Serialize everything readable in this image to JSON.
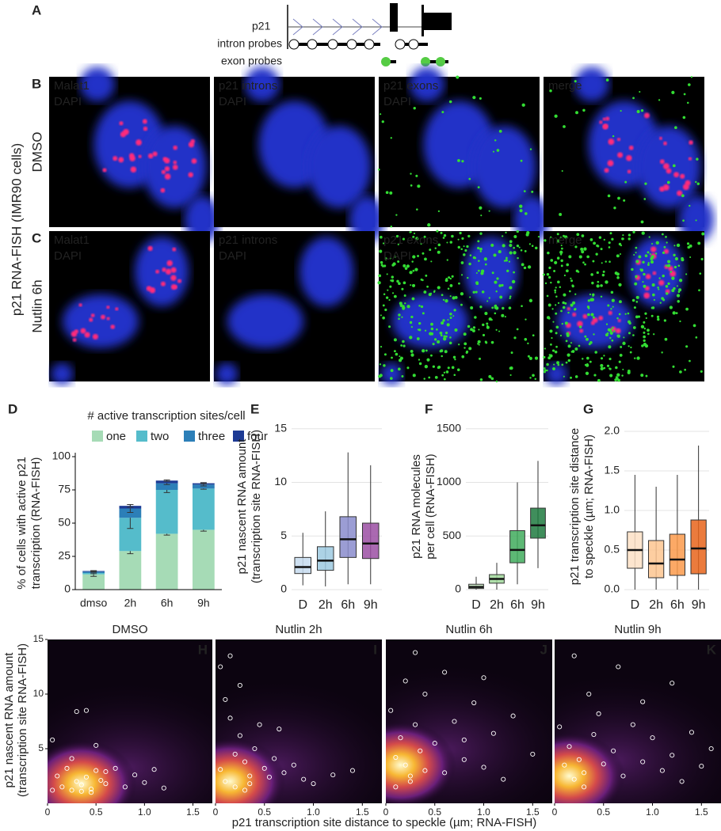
{
  "panel_a": {
    "label": "A",
    "gene": "p21",
    "intron_probes": "intron probes",
    "exon_probes": "exon probes"
  },
  "microscopy": {
    "y_title": "p21 RNA-FISH (IMR90 cells)",
    "rows": [
      {
        "label": "B",
        "condition": "DMSO",
        "panels": [
          {
            "lines": [
              {
                "text": "Malat1",
                "color": "#ff3333"
              },
              {
                "text": "DAPI",
                "color": "#3b6bff"
              }
            ]
          },
          {
            "lines": [
              {
                "text": "p21 introns",
                "color": "#ffffff"
              },
              {
                "text": "DAPI",
                "color": "#3b6bff"
              }
            ]
          },
          {
            "lines": [
              {
                "text": "p21 exons",
                "color": "#33dd33"
              },
              {
                "text": "DAPI",
                "color": "#3b6bff"
              }
            ]
          },
          {
            "lines": [
              {
                "text": "merge",
                "color": "#ffffff"
              }
            ]
          }
        ]
      },
      {
        "label": "C",
        "condition": "Nutlin 6h",
        "panels": [
          {
            "lines": [
              {
                "text": "Malat1",
                "color": "#ff3333"
              },
              {
                "text": "DAPI",
                "color": "#3b6bff"
              }
            ]
          },
          {
            "lines": [
              {
                "text": "p21 introns",
                "color": "#ffffff"
              },
              {
                "text": "DAPI",
                "color": "#3b6bff"
              }
            ]
          },
          {
            "lines": [
              {
                "text": "p21 exons",
                "color": "#33dd33"
              },
              {
                "text": "DAPI",
                "color": "#3b6bff"
              }
            ]
          },
          {
            "lines": [
              {
                "text": "merge",
                "color": "#ffffff"
              }
            ]
          }
        ]
      }
    ]
  },
  "shared_axes": {
    "x_label": "p21 transcription site distance to speckle (µm; RNA-FISH)",
    "y_label": [
      "p21 nascent RNA amount",
      "(transcription site RNA-FISH)"
    ]
  },
  "chart_data": [
    {
      "label": "D",
      "type": "bar",
      "stacked": true,
      "y_label": [
        "% of cells with active p21",
        "transcription (RNA-FISH)"
      ],
      "legend_title": "# active transcription sites/cell",
      "categories": [
        "dmso",
        "2h",
        "6h",
        "9h"
      ],
      "series": [
        {
          "name": "one",
          "color": "#a6dbb6",
          "values": [
            11.5,
            29,
            42,
            45
          ],
          "errors": [
            1.5,
            2,
            1,
            1
          ]
        },
        {
          "name": "two",
          "color": "#55bccb",
          "values": [
            1,
            25,
            33,
            31
          ],
          "errors": [
            0.5,
            8,
            2,
            0.5
          ]
        },
        {
          "name": "three",
          "color": "#2c7fb8",
          "values": [
            1,
            7,
            5,
            3
          ],
          "errors": [
            0.5,
            3,
            1,
            1
          ]
        },
        {
          "name": "four",
          "color": "#1d3a94",
          "values": [
            0.5,
            2,
            2,
            1
          ],
          "errors": [
            0.3,
            1,
            0.5,
            0.5
          ]
        }
      ],
      "ylim": [
        0,
        100
      ],
      "yticks": [
        0,
        25,
        50,
        75,
        100
      ]
    },
    {
      "label": "E",
      "type": "box",
      "y_label": [
        "p21 nascent RNA amount",
        "(transcription site RNA-FISH)"
      ],
      "categories": [
        "D",
        "2h",
        "6h",
        "9h"
      ],
      "colors": [
        "#c6dbef",
        "#9ecae1",
        "#8a8ccc",
        "#9b4fa3"
      ],
      "whisker_low": [
        0.4,
        0.3,
        0.5,
        0.5
      ],
      "q1": [
        1.5,
        1.8,
        3,
        2.9
      ],
      "median": [
        2.1,
        2.7,
        4.7,
        4.3
      ],
      "q3": [
        3,
        4,
        6.8,
        6.2
      ],
      "whisker_high": [
        5.3,
        7.3,
        12.8,
        11.6
      ],
      "ylim": [
        0,
        15.5
      ],
      "yticks": [
        0,
        5,
        10,
        15
      ],
      "grid": true
    },
    {
      "label": "F",
      "type": "box",
      "y_label": [
        "p21 RNA molecules",
        "per cell (RNA-FISH)"
      ],
      "categories": [
        "D",
        "2h",
        "6h",
        "9h"
      ],
      "colors": [
        "#c7e9c0",
        "#a1d99b",
        "#41ab5d",
        "#1f7a3f"
      ],
      "whisker_low": [
        0,
        0,
        50,
        200
      ],
      "q1": [
        10,
        60,
        250,
        480
      ],
      "median": [
        25,
        100,
        370,
        600
      ],
      "q3": [
        50,
        140,
        550,
        760
      ],
      "whisker_high": [
        120,
        250,
        1000,
        1200
      ],
      "ylim": [
        0,
        1550
      ],
      "yticks": [
        0,
        500,
        1000,
        1500
      ],
      "grid": true
    },
    {
      "label": "G",
      "type": "box",
      "y_label": [
        "p21 transcription site distance",
        "to speckle (µm; RNA-FISH)"
      ],
      "categories": [
        "D",
        "2h",
        "6h",
        "9h"
      ],
      "colors": [
        "#fde0c5",
        "#fdc591",
        "#fb9a4b",
        "#e8641b"
      ],
      "whisker_low": [
        0,
        0,
        0,
        0
      ],
      "q1": [
        0.27,
        0.15,
        0.18,
        0.2
      ],
      "median": [
        0.5,
        0.33,
        0.38,
        0.52
      ],
      "q3": [
        0.73,
        0.62,
        0.7,
        0.88
      ],
      "whisker_high": [
        1.45,
        1.3,
        1.45,
        1.82
      ],
      "ylim": [
        0,
        2.1
      ],
      "yticks": [
        {
          "value": 0,
          "label": "0.0"
        },
        0.5,
        {
          "value": 1,
          "label": "1.0"
        },
        1.5,
        {
          "value": 2,
          "label": "2.0"
        }
      ],
      "grid": true
    },
    {
      "label": "H",
      "type": "scatter",
      "title": "DMSO",
      "density_peak": [
        0.35,
        1.8
      ],
      "x": [
        0.05,
        0.1,
        0.15,
        0.2,
        0.25,
        0.3,
        0.35,
        0.4,
        0.45,
        0.5,
        0.55,
        0.6,
        0.7,
        0.8,
        0.9,
        1.0,
        1.1,
        1.2,
        0.3,
        0.4,
        0.5,
        0.25,
        0.6,
        0.05,
        0.45,
        0.35
      ],
      "y": [
        5.8,
        2.5,
        1.5,
        3.2,
        1.2,
        2.0,
        1.7,
        2.4,
        1.3,
        3.0,
        2.1,
        1.8,
        3.2,
        1.5,
        2.6,
        1.9,
        3.1,
        1.4,
        8.4,
        8.5,
        5.3,
        4.1,
        2.9,
        1.2,
        1.0,
        1.1
      ],
      "xlim": [
        0,
        1.7
      ],
      "ylim": [
        0,
        15
      ],
      "xticks": [
        0,
        0.5,
        {
          "value": 1,
          "label": "1.0"
        },
        1.5
      ],
      "yticks": [
        5,
        10,
        15
      ]
    },
    {
      "label": "I",
      "type": "scatter",
      "title": "Nutlin 2h",
      "density_peak": [
        0.15,
        2.0
      ],
      "x": [
        0.05,
        0.1,
        0.15,
        0.2,
        0.25,
        0.3,
        0.35,
        0.4,
        0.5,
        0.6,
        0.7,
        0.8,
        0.9,
        1.0,
        1.2,
        1.4,
        0.1,
        0.2,
        0.3,
        0.15,
        0.25,
        0.45,
        0.05,
        0.35,
        0.55,
        0.65
      ],
      "y": [
        12.5,
        9.5,
        7.8,
        4.5,
        6.2,
        3.8,
        2.5,
        5.0,
        3.2,
        4.1,
        2.8,
        3.5,
        2.2,
        1.8,
        2.6,
        3.0,
        2.0,
        1.5,
        1.2,
        13.5,
        10.8,
        7.2,
        3.1,
        1.8,
        2.4,
        6.8
      ],
      "xlim": [
        0,
        1.7
      ],
      "ylim": [
        0,
        15
      ],
      "xticks": [
        0,
        0.5,
        {
          "value": 1,
          "label": "1.0"
        },
        1.5
      ]
    },
    {
      "label": "J",
      "type": "scatter",
      "title": "Nutlin 6h",
      "density_peak": [
        0.15,
        3.5
      ],
      "x": [
        0.05,
        0.1,
        0.15,
        0.2,
        0.25,
        0.3,
        0.35,
        0.4,
        0.5,
        0.6,
        0.7,
        0.8,
        0.9,
        1.0,
        1.1,
        1.2,
        1.3,
        1.5,
        0.2,
        0.3,
        0.1,
        0.4,
        0.6,
        0.8,
        1.0,
        0.25
      ],
      "y": [
        8.5,
        4.2,
        6.0,
        3.5,
        2.5,
        7.2,
        4.8,
        3.0,
        5.5,
        2.8,
        7.5,
        4.0,
        9.2,
        3.3,
        6.4,
        2.2,
        8.0,
        4.5,
        11.2,
        13.8,
        1.5,
        10.0,
        12.0,
        5.8,
        11.5,
        2.0
      ],
      "xlim": [
        0,
        1.7
      ],
      "ylim": [
        0,
        15
      ],
      "xticks": [
        0,
        0.5,
        {
          "value": 1,
          "label": "1.0"
        },
        1.5
      ]
    },
    {
      "label": "K",
      "type": "scatter",
      "title": "Nutlin 9h",
      "density_peak": [
        0.15,
        2.5
      ],
      "x": [
        0.05,
        0.1,
        0.15,
        0.2,
        0.25,
        0.3,
        0.4,
        0.5,
        0.6,
        0.7,
        0.8,
        0.9,
        1.0,
        1.1,
        1.2,
        1.3,
        1.4,
        1.5,
        1.6,
        0.2,
        0.35,
        0.45,
        0.65,
        0.9,
        1.2,
        0.3
      ],
      "y": [
        7.0,
        3.5,
        5.2,
        2.2,
        4.0,
        2.8,
        6.3,
        3.6,
        4.8,
        2.5,
        7.2,
        3.8,
        6.0,
        3.0,
        4.4,
        2.0,
        6.5,
        3.4,
        5.0,
        13.5,
        10.0,
        8.2,
        12.5,
        9.3,
        11.0,
        1.5
      ],
      "xlim": [
        0,
        1.7
      ],
      "ylim": [
        0,
        15
      ],
      "xticks": [
        0,
        0.5,
        {
          "value": 1,
          "label": "1.0"
        },
        1.5
      ]
    }
  ]
}
